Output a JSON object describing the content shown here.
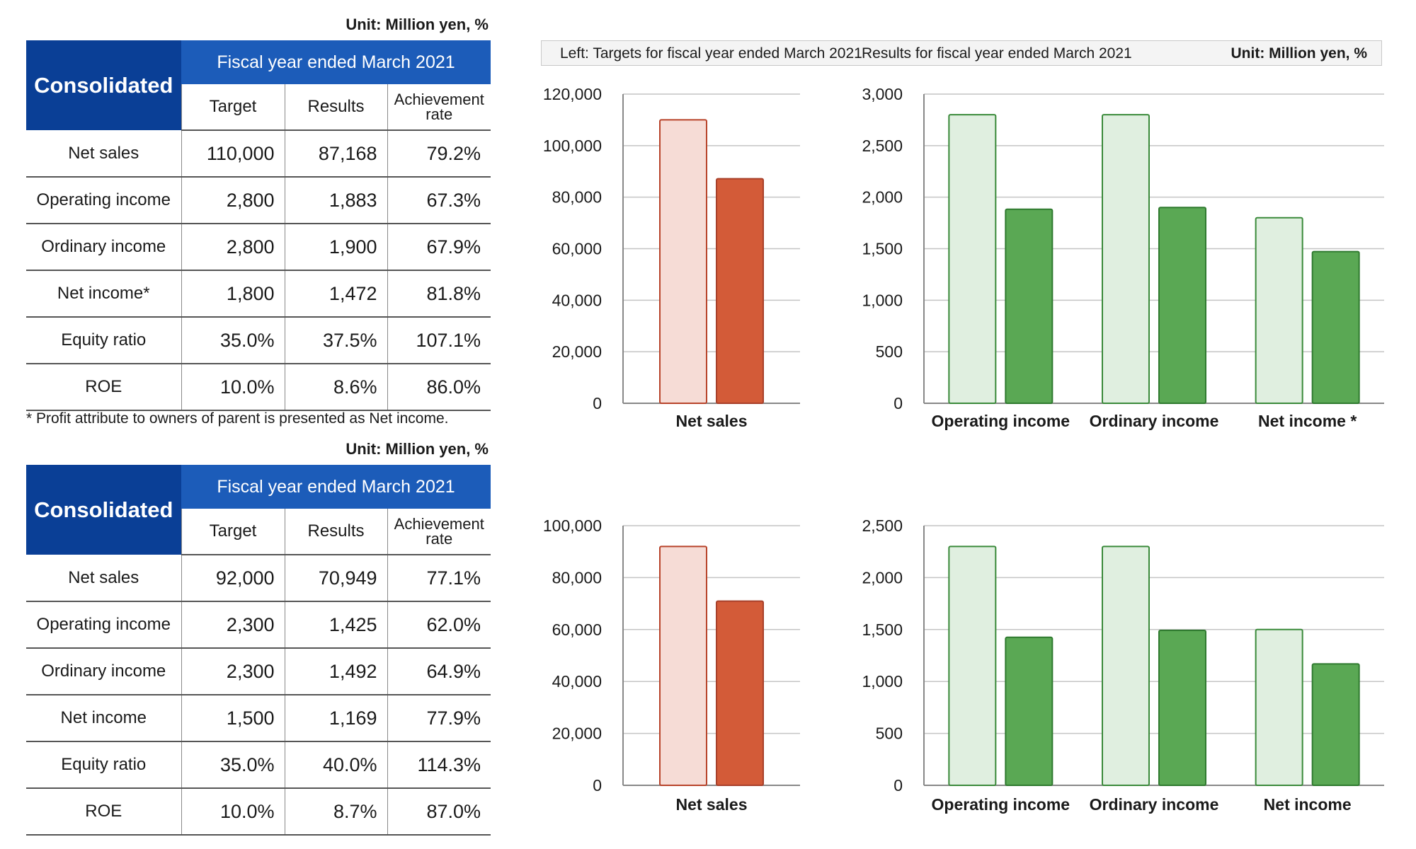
{
  "legend": {
    "left_label": "Left: Targets for fiscal year ended March 2021",
    "right_label": "Results for fiscal year ended March 2021",
    "unit": "Unit: Million yen, %"
  },
  "colors": {
    "sales_target_fill": "#f6dcd6",
    "sales_target_stroke": "#b8432a",
    "sales_result_fill": "#d35b38",
    "sales_result_stroke": "#a8402a",
    "income_target_fill": "#e0efe0",
    "income_target_stroke": "#3a8a3a",
    "income_result_fill": "#5aa854",
    "income_result_stroke": "#2f7a2f",
    "table_header_dark": "#0a3f96",
    "table_header_light": "#1c5cb9"
  },
  "tables": [
    {
      "unit": "Unit: Million yen, %",
      "corner": "Consolidated",
      "period": "Fiscal year ended March 2021",
      "columns": [
        "Target",
        "Results",
        "Achievement rate"
      ],
      "rows": [
        {
          "label": "Net sales",
          "values": [
            "110,000",
            "87,168",
            "79.2%"
          ]
        },
        {
          "label": "Operating income",
          "values": [
            "2,800",
            "1,883",
            "67.3%"
          ]
        },
        {
          "label": "Ordinary income",
          "values": [
            "2,800",
            "1,900",
            "67.9%"
          ]
        },
        {
          "label": "Net income*",
          "values": [
            "1,800",
            "1,472",
            "81.8%"
          ]
        },
        {
          "label": "Equity ratio",
          "values": [
            "35.0%",
            "37.5%",
            "107.1%"
          ]
        },
        {
          "label": "ROE",
          "values": [
            "10.0%",
            "8.6%",
            "86.0%"
          ]
        }
      ],
      "note": "* Profit attribute to owners of parent is presented as Net income."
    },
    {
      "unit": "Unit: Million yen, %",
      "corner": "Consolidated",
      "period": "Fiscal year ended March 2021",
      "columns": [
        "Target",
        "Results",
        "Achievement rate"
      ],
      "rows": [
        {
          "label": "Net sales",
          "values": [
            "92,000",
            "70,949",
            "77.1%"
          ]
        },
        {
          "label": "Operating income",
          "values": [
            "2,300",
            "1,425",
            "62.0%"
          ]
        },
        {
          "label": "Ordinary income",
          "values": [
            "2,300",
            "1,492",
            "64.9%"
          ]
        },
        {
          "label": "Net income",
          "values": [
            "1,500",
            "1,169",
            "77.9%"
          ]
        },
        {
          "label": "Equity ratio",
          "values": [
            "35.0%",
            "40.0%",
            "114.3%"
          ]
        },
        {
          "label": "ROE",
          "values": [
            "10.0%",
            "8.7%",
            "87.0%"
          ]
        }
      ],
      "note": ""
    }
  ],
  "chart_data": [
    {
      "type": "bar",
      "palette": "sales",
      "grid": true,
      "categories": [
        "Net sales"
      ],
      "series": [
        {
          "values": [
            110000
          ]
        },
        {
          "values": [
            87168
          ]
        }
      ],
      "ylim": [
        0,
        120000
      ],
      "yticks": [
        "0",
        "20,000",
        "40,000",
        "60,000",
        "80,000",
        "100,000",
        "120,000"
      ],
      "xlabel": "",
      "ylabel": "",
      "title": ""
    },
    {
      "type": "bar",
      "palette": "income",
      "grid": true,
      "categories": [
        "Operating income",
        "Ordinary income",
        "Net income *"
      ],
      "series": [
        {
          "values": [
            2800,
            2800,
            1800
          ]
        },
        {
          "values": [
            1883,
            1900,
            1472
          ]
        }
      ],
      "ylim": [
        0,
        3000
      ],
      "yticks": [
        "0",
        "500",
        "1,000",
        "1,500",
        "2,000",
        "2,500",
        "3,000"
      ],
      "xlabel": "",
      "ylabel": "",
      "title": ""
    },
    {
      "type": "bar",
      "palette": "sales",
      "grid": true,
      "categories": [
        "Net sales"
      ],
      "series": [
        {
          "values": [
            92000
          ]
        },
        {
          "values": [
            70949
          ]
        }
      ],
      "ylim": [
        0,
        100000
      ],
      "yticks": [
        "0",
        "20,000",
        "40,000",
        "60,000",
        "80,000",
        "100,000"
      ],
      "xlabel": "",
      "ylabel": "",
      "title": ""
    },
    {
      "type": "bar",
      "palette": "income",
      "grid": true,
      "categories": [
        "Operating income",
        "Ordinary income",
        "Net income"
      ],
      "series": [
        {
          "values": [
            2300,
            2300,
            1500
          ]
        },
        {
          "values": [
            1425,
            1492,
            1169
          ]
        }
      ],
      "ylim": [
        0,
        2500
      ],
      "yticks": [
        "0",
        "500",
        "1,000",
        "1,500",
        "2,000",
        "2,500"
      ],
      "xlabel": "",
      "ylabel": "",
      "title": ""
    }
  ]
}
